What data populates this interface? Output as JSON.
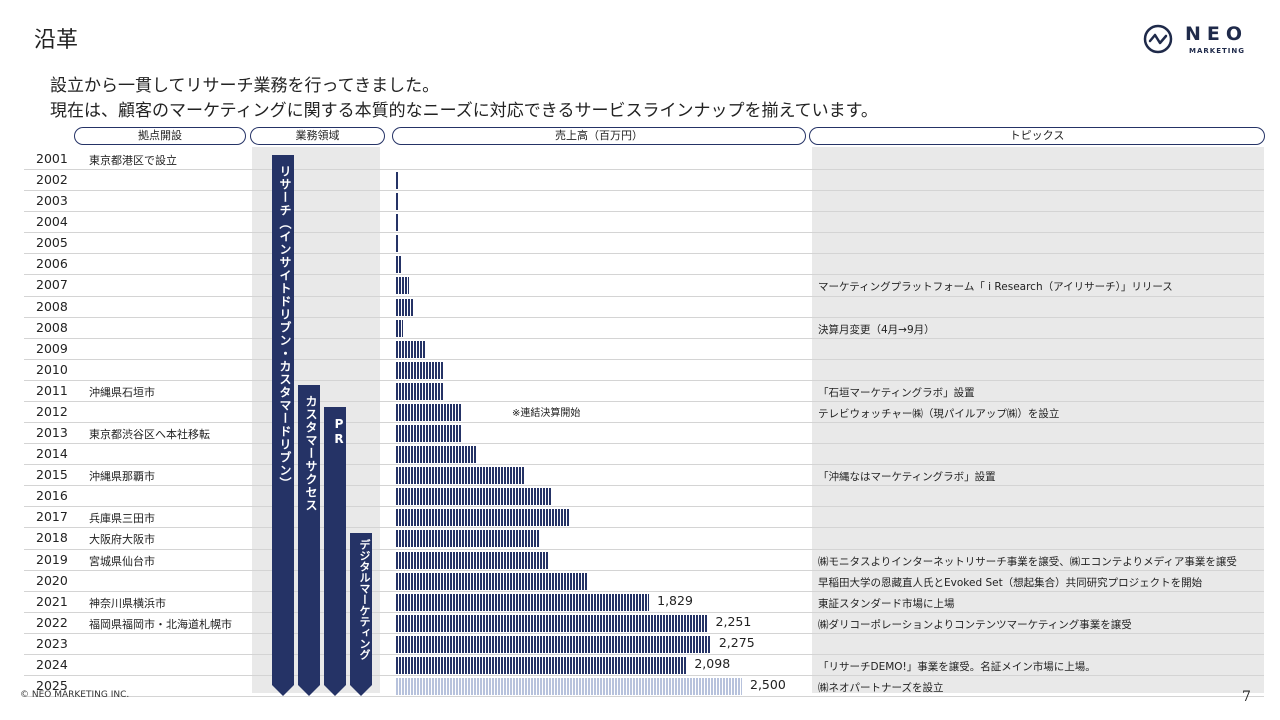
{
  "page": {
    "title": "沿革",
    "lead_1": "設立から一貫してリサーチ業務を行ってきました。",
    "lead_2": "現在は、顧客のマーケティングに関する本質的なニーズに対応できるサービスラインナップを揃えています。",
    "footer": "© NEO MARKETING INC.",
    "page_number": "7"
  },
  "logo": {
    "name": "NEO",
    "sub": "MARKETING"
  },
  "headers": {
    "locations": "拠点開設",
    "business": "業務領域",
    "sales": "売上高（百万円）",
    "topics": "トピックス"
  },
  "business_areas": [
    {
      "label": "リサーチ（インサイトドリブン・カスタマードリブン）"
    },
    {
      "label": "カスタマーサクセス"
    },
    {
      "label": "PR"
    },
    {
      "label": "デジタルマーケティング"
    }
  ],
  "rows": [
    {
      "year": "2001",
      "location": "東京都港区で設立",
      "topic": ""
    },
    {
      "year": "2002",
      "location": "",
      "topic": ""
    },
    {
      "year": "2003",
      "location": "",
      "topic": ""
    },
    {
      "year": "2004",
      "location": "",
      "topic": ""
    },
    {
      "year": "2005",
      "location": "",
      "topic": ""
    },
    {
      "year": "2006",
      "location": "",
      "topic": ""
    },
    {
      "year": "2007",
      "location": "",
      "topic": "マーケティングプラットフォーム「 i Research（アイリサーチ）」リリース"
    },
    {
      "year": "2008",
      "location": "",
      "topic": ""
    },
    {
      "year": "2008",
      "location": "",
      "topic": "決算月変更（4月→9月）"
    },
    {
      "year": "2009",
      "location": "",
      "topic": ""
    },
    {
      "year": "2010",
      "location": "",
      "topic": ""
    },
    {
      "year": "2011",
      "location": "沖縄県石垣市",
      "topic": "「石垣マーケティングラボ」設置"
    },
    {
      "year": "2012",
      "location": "",
      "topic": "テレビウォッチャー㈱（現パイルアップ㈱）を設立"
    },
    {
      "year": "2013",
      "location": "東京都渋谷区へ本社移転",
      "topic": ""
    },
    {
      "year": "2014",
      "location": "",
      "topic": ""
    },
    {
      "year": "2015",
      "location": "沖縄県那覇市",
      "topic": "「沖縄なはマーケティングラボ」設置"
    },
    {
      "year": "2016",
      "location": "",
      "topic": ""
    },
    {
      "year": "2017",
      "location": "兵庫県三田市",
      "topic": ""
    },
    {
      "year": "2018",
      "location": "大阪府大阪市",
      "topic": ""
    },
    {
      "year": "2019",
      "location": "宮城県仙台市",
      "topic": "㈱モニタスよりインターネットリサーチ事業を譲受、㈱エコンテよりメディア事業を譲受"
    },
    {
      "year": "2020",
      "location": "",
      "topic": "早稲田大学の恩藏直人氏とEvoked Set（想起集合）共同研究プロジェクトを開始"
    },
    {
      "year": "2021",
      "location": "神奈川県横浜市",
      "topic": "東証スタンダード市場に上場"
    },
    {
      "year": "2022",
      "location": "福岡県福岡市・北海道札幌市",
      "topic": "㈱ダリコーポレーションよりコンテンツマーケティング事業を譲受"
    },
    {
      "year": "2023",
      "location": "",
      "topic": ""
    },
    {
      "year": "2024",
      "location": "",
      "topic": "「リサーチDEMO!」事業を譲受。名証メイン市場に上場。"
    },
    {
      "year": "2025",
      "location": "",
      "topic": "㈱ネオパートナーズを設立"
    }
  ],
  "chart_data": {
    "type": "bar",
    "orientation": "horizontal",
    "title": "売上高（百万円）",
    "categories": [
      "2001",
      "2002",
      "2003",
      "2004",
      "2005",
      "2006",
      "2007",
      "2008",
      "2008",
      "2009",
      "2010",
      "2011",
      "2012",
      "2013",
      "2014",
      "2015",
      "2016",
      "2017",
      "2018",
      "2019",
      "2020",
      "2021",
      "2022",
      "2023",
      "2024",
      "2025"
    ],
    "values": [
      0,
      12,
      12,
      15,
      20,
      40,
      95,
      120,
      50,
      210,
      345,
      345,
      470,
      470,
      575,
      925,
      1120,
      1250,
      1040,
      1100,
      1380,
      1829,
      2251,
      2275,
      2098,
      2500
    ],
    "value_labels": [
      "",
      "",
      "",
      "",
      "",
      "",
      "",
      "",
      "",
      "",
      "",
      "",
      "",
      "",
      "",
      "",
      "",
      "",
      "",
      "",
      "",
      "1,829",
      "2,251",
      "2,275",
      "2,098",
      "2,500"
    ],
    "plan_index": 25,
    "annotation": "※連結決算開始",
    "xlim": [
      0,
      2500
    ],
    "colors": {
      "actual": "#253366",
      "plan": "#b7c2dc"
    }
  }
}
